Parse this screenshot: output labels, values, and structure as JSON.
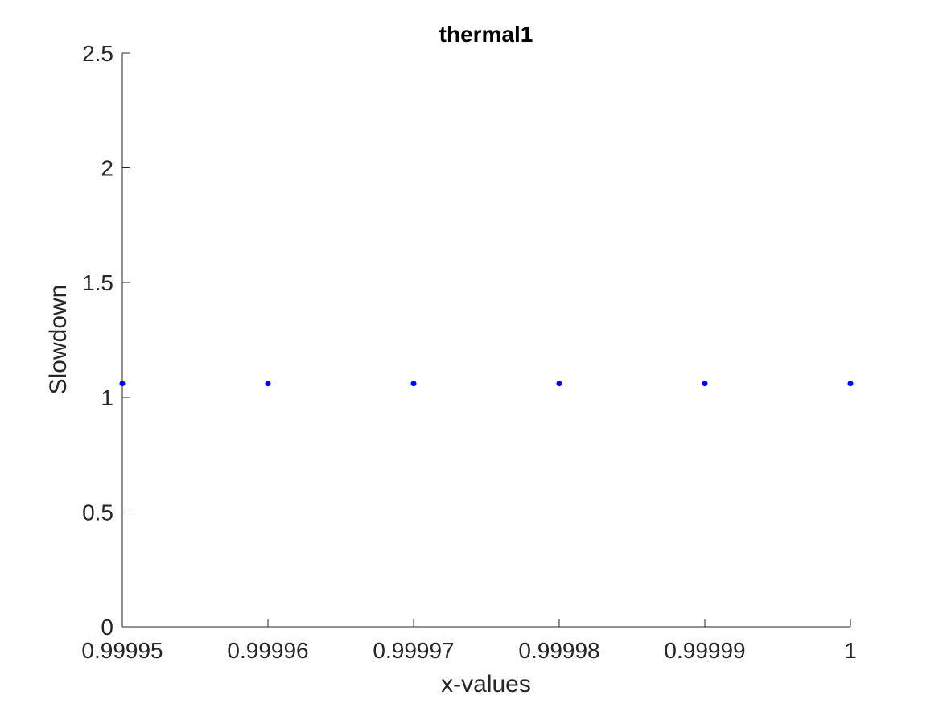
{
  "chart_data": {
    "type": "scatter",
    "title": "thermal1",
    "xlabel": "x-values",
    "ylabel": "Slowdown",
    "xlim": [
      0.99995,
      1
    ],
    "ylim": [
      0,
      2.5
    ],
    "x_ticks": [
      0.99995,
      0.99996,
      0.99997,
      0.99998,
      0.99999,
      1
    ],
    "x_tick_labels": [
      "0.99995",
      "0.99996",
      "0.99997",
      "0.99998",
      "0.99999",
      "1"
    ],
    "y_ticks": [
      0,
      0.5,
      1,
      1.5,
      2,
      2.5
    ],
    "y_tick_labels": [
      "0",
      "0.5",
      "1",
      "1.5",
      "2",
      "2.5"
    ],
    "grid": false,
    "series": [
      {
        "color": "#0000ff",
        "marker": "dot",
        "x": [
          0.99995,
          0.99996,
          0.99997,
          0.99998,
          0.99999,
          1
        ],
        "y": [
          1.06,
          1.06,
          1.06,
          1.06,
          1.06,
          1.06
        ]
      }
    ]
  }
}
